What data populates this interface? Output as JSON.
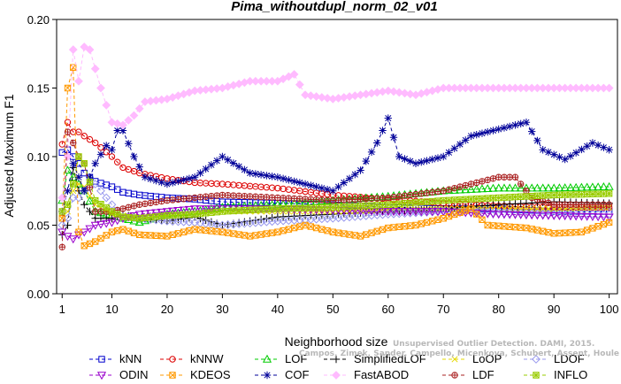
{
  "chart_data": {
    "type": "line",
    "title": "Pima_withoutdupl_norm_02_v01",
    "xlabel": "Neighborhood size",
    "ylabel": "Adjusted Maximum F1",
    "xlim": [
      1,
      100
    ],
    "ylim": [
      0,
      0.2
    ],
    "xticks": [
      1,
      10,
      20,
      30,
      40,
      50,
      60,
      70,
      80,
      90,
      100
    ],
    "yticks": [
      "0.00",
      "0.05",
      "0.10",
      "0.15",
      "0.20"
    ],
    "grid": false,
    "legend_position": "bottom",
    "annotation_lines": [
      "Unsupervised Outlier Detection. DAMI, 2015.",
      "Campos, Zimek, Sander, Campello, Micenkova, Schubert, Assent, Houle"
    ],
    "series": [
      {
        "name": "kNN",
        "color": "#0000cc",
        "marker": "square",
        "dash": "4,3",
        "points": [
          [
            1,
            0.103
          ],
          [
            2,
            0.105
          ],
          [
            3,
            0.1
          ],
          [
            4,
            0.095
          ],
          [
            5,
            0.088
          ],
          [
            7,
            0.082
          ],
          [
            10,
            0.078
          ],
          [
            12,
            0.074
          ],
          [
            15,
            0.072
          ],
          [
            20,
            0.07
          ],
          [
            25,
            0.069
          ],
          [
            30,
            0.067
          ],
          [
            40,
            0.066
          ],
          [
            50,
            0.065
          ],
          [
            60,
            0.063
          ],
          [
            70,
            0.062
          ],
          [
            80,
            0.062
          ],
          [
            90,
            0.06
          ],
          [
            100,
            0.06
          ]
        ]
      },
      {
        "name": "kNNW",
        "color": "#dd0000",
        "marker": "circle",
        "dash": "4,3",
        "points": [
          [
            1,
            0.109
          ],
          [
            2,
            0.125
          ],
          [
            3,
            0.118
          ],
          [
            4,
            0.118
          ],
          [
            5,
            0.115
          ],
          [
            7,
            0.11
          ],
          [
            10,
            0.1
          ],
          [
            12,
            0.092
          ],
          [
            15,
            0.088
          ],
          [
            20,
            0.084
          ],
          [
            25,
            0.081
          ],
          [
            30,
            0.08
          ],
          [
            40,
            0.077
          ],
          [
            50,
            0.072
          ],
          [
            60,
            0.069
          ],
          [
            70,
            0.066
          ],
          [
            80,
            0.064
          ],
          [
            90,
            0.063
          ],
          [
            100,
            0.063
          ]
        ]
      },
      {
        "name": "LOF",
        "color": "#00cc00",
        "marker": "triangle",
        "dash": "4,3",
        "points": [
          [
            1,
            0.068
          ],
          [
            2,
            0.09
          ],
          [
            3,
            0.085
          ],
          [
            4,
            0.08
          ],
          [
            5,
            0.075
          ],
          [
            7,
            0.06
          ],
          [
            10,
            0.057
          ],
          [
            12,
            0.055
          ],
          [
            15,
            0.052
          ],
          [
            20,
            0.058
          ],
          [
            25,
            0.06
          ],
          [
            30,
            0.063
          ],
          [
            40,
            0.065
          ],
          [
            50,
            0.068
          ],
          [
            60,
            0.071
          ],
          [
            70,
            0.075
          ],
          [
            80,
            0.077
          ],
          [
            90,
            0.077
          ],
          [
            100,
            0.078
          ]
        ]
      },
      {
        "name": "SimplifiedLOF",
        "color": "#000000",
        "marker": "plus",
        "dash": "4,3",
        "points": [
          [
            1,
            0.043
          ],
          [
            2,
            0.05
          ],
          [
            3,
            0.092
          ],
          [
            4,
            0.075
          ],
          [
            5,
            0.065
          ],
          [
            7,
            0.055
          ],
          [
            10,
            0.055
          ],
          [
            12,
            0.058
          ],
          [
            15,
            0.055
          ],
          [
            20,
            0.053
          ],
          [
            25,
            0.056
          ],
          [
            30,
            0.05
          ],
          [
            35,
            0.053
          ],
          [
            40,
            0.056
          ],
          [
            50,
            0.058
          ],
          [
            60,
            0.06
          ],
          [
            70,
            0.062
          ],
          [
            80,
            0.065
          ],
          [
            90,
            0.067
          ],
          [
            100,
            0.066
          ]
        ]
      },
      {
        "name": "LoOP",
        "color": "#e6d800",
        "marker": "x",
        "dash": "4,3",
        "points": [
          [
            1,
            0.055
          ],
          [
            2,
            0.06
          ],
          [
            3,
            0.075
          ],
          [
            4,
            0.08
          ],
          [
            5,
            0.078
          ],
          [
            7,
            0.065
          ],
          [
            10,
            0.058
          ],
          [
            12,
            0.057
          ],
          [
            15,
            0.056
          ],
          [
            20,
            0.057
          ],
          [
            25,
            0.058
          ],
          [
            30,
            0.06
          ],
          [
            40,
            0.06
          ],
          [
            50,
            0.06
          ],
          [
            60,
            0.061
          ],
          [
            70,
            0.062
          ],
          [
            80,
            0.062
          ],
          [
            90,
            0.062
          ],
          [
            100,
            0.063
          ]
        ]
      },
      {
        "name": "LDOF",
        "color": "#9999ee",
        "marker": "diamond",
        "dash": "4,3",
        "points": [
          [
            1,
            0.05
          ],
          [
            2,
            0.055
          ],
          [
            3,
            0.07
          ],
          [
            4,
            0.07
          ],
          [
            5,
            0.075
          ],
          [
            7,
            0.08
          ],
          [
            10,
            0.065
          ],
          [
            12,
            0.056
          ],
          [
            15,
            0.055
          ],
          [
            20,
            0.053
          ],
          [
            25,
            0.052
          ],
          [
            30,
            0.05
          ],
          [
            40,
            0.053
          ],
          [
            50,
            0.055
          ],
          [
            60,
            0.058
          ],
          [
            70,
            0.06
          ],
          [
            80,
            0.059
          ],
          [
            90,
            0.058
          ],
          [
            100,
            0.058
          ]
        ]
      },
      {
        "name": "ODIN",
        "color": "#9900cc",
        "marker": "triangle-down",
        "dash": "4,3",
        "points": [
          [
            1,
            0.045
          ],
          [
            2,
            0.042
          ],
          [
            3,
            0.04
          ],
          [
            4,
            0.043
          ],
          [
            5,
            0.045
          ],
          [
            7,
            0.05
          ],
          [
            10,
            0.052
          ],
          [
            12,
            0.055
          ],
          [
            15,
            0.058
          ],
          [
            20,
            0.06
          ],
          [
            25,
            0.062
          ],
          [
            30,
            0.062
          ],
          [
            40,
            0.062
          ],
          [
            50,
            0.061
          ],
          [
            60,
            0.06
          ],
          [
            70,
            0.06
          ],
          [
            80,
            0.058
          ],
          [
            90,
            0.057
          ],
          [
            100,
            0.056
          ]
        ]
      },
      {
        "name": "KDEOS",
        "color": "#ff9900",
        "marker": "square-x",
        "dash": "4,3",
        "points": [
          [
            1,
            0.055
          ],
          [
            2,
            0.15
          ],
          [
            3,
            0.165
          ],
          [
            4,
            0.045
          ],
          [
            5,
            0.035
          ],
          [
            7,
            0.038
          ],
          [
            10,
            0.045
          ],
          [
            12,
            0.047
          ],
          [
            15,
            0.043
          ],
          [
            20,
            0.042
          ],
          [
            25,
            0.047
          ],
          [
            30,
            0.045
          ],
          [
            35,
            0.042
          ],
          [
            40,
            0.045
          ],
          [
            45,
            0.05
          ],
          [
            50,
            0.045
          ],
          [
            55,
            0.042
          ],
          [
            60,
            0.048
          ],
          [
            65,
            0.05
          ],
          [
            70,
            0.055
          ],
          [
            75,
            0.062
          ],
          [
            78,
            0.05
          ],
          [
            85,
            0.048
          ],
          [
            90,
            0.044
          ],
          [
            95,
            0.045
          ],
          [
            100,
            0.052
          ]
        ]
      },
      {
        "name": "COF",
        "color": "#000099",
        "marker": "star",
        "dash": "4,3",
        "points": [
          [
            1,
            0.06
          ],
          [
            2,
            0.075
          ],
          [
            3,
            0.095
          ],
          [
            4,
            0.085
          ],
          [
            5,
            0.075
          ],
          [
            7,
            0.095
          ],
          [
            9,
            0.108
          ],
          [
            10,
            0.105
          ],
          [
            11,
            0.119
          ],
          [
            12,
            0.119
          ],
          [
            14,
            0.1
          ],
          [
            16,
            0.085
          ],
          [
            20,
            0.08
          ],
          [
            25,
            0.085
          ],
          [
            30,
            0.1
          ],
          [
            35,
            0.088
          ],
          [
            40,
            0.085
          ],
          [
            45,
            0.08
          ],
          [
            50,
            0.075
          ],
          [
            55,
            0.09
          ],
          [
            58,
            0.11
          ],
          [
            60,
            0.128
          ],
          [
            62,
            0.1
          ],
          [
            65,
            0.095
          ],
          [
            70,
            0.1
          ],
          [
            75,
            0.115
          ],
          [
            80,
            0.12
          ],
          [
            85,
            0.125
          ],
          [
            88,
            0.105
          ],
          [
            92,
            0.098
          ],
          [
            97,
            0.11
          ],
          [
            100,
            0.105
          ]
        ]
      },
      {
        "name": "FastABOD",
        "color": "#ffbbff",
        "marker": "diamond-filled",
        "dash": "4,3",
        "points": [
          [
            1,
            0.07
          ],
          [
            2,
            0.1
          ],
          [
            3,
            0.178
          ],
          [
            4,
            0.155
          ],
          [
            5,
            0.18
          ],
          [
            6,
            0.178
          ],
          [
            8,
            0.15
          ],
          [
            10,
            0.125
          ],
          [
            12,
            0.123
          ],
          [
            14,
            0.13
          ],
          [
            16,
            0.14
          ],
          [
            20,
            0.142
          ],
          [
            25,
            0.148
          ],
          [
            30,
            0.15
          ],
          [
            35,
            0.155
          ],
          [
            40,
            0.155
          ],
          [
            43,
            0.16
          ],
          [
            45,
            0.145
          ],
          [
            50,
            0.142
          ],
          [
            55,
            0.145
          ],
          [
            60,
            0.148
          ],
          [
            65,
            0.145
          ],
          [
            70,
            0.15
          ],
          [
            80,
            0.15
          ],
          [
            90,
            0.15
          ],
          [
            100,
            0.15
          ]
        ]
      },
      {
        "name": "LDF",
        "color": "#aa2222",
        "marker": "circle-plus",
        "dash": "4,3",
        "points": [
          [
            1,
            0.034
          ],
          [
            2,
            0.118
          ],
          [
            3,
            0.11
          ],
          [
            4,
            0.1
          ],
          [
            5,
            0.095
          ],
          [
            7,
            0.06
          ],
          [
            10,
            0.06
          ],
          [
            12,
            0.062
          ],
          [
            15,
            0.065
          ],
          [
            20,
            0.068
          ],
          [
            25,
            0.07
          ],
          [
            30,
            0.072
          ],
          [
            40,
            0.07
          ],
          [
            50,
            0.068
          ],
          [
            60,
            0.07
          ],
          [
            70,
            0.075
          ],
          [
            75,
            0.08
          ],
          [
            80,
            0.085
          ],
          [
            83,
            0.085
          ],
          [
            86,
            0.07
          ],
          [
            90,
            0.065
          ],
          [
            100,
            0.065
          ]
        ]
      },
      {
        "name": "INFLO",
        "color": "#99cc00",
        "marker": "square-star",
        "dash": "4,3",
        "points": [
          [
            1,
            0.06
          ],
          [
            2,
            0.065
          ],
          [
            3,
            0.08
          ],
          [
            4,
            0.1
          ],
          [
            5,
            0.095
          ],
          [
            7,
            0.068
          ],
          [
            10,
            0.06
          ],
          [
            12,
            0.056
          ],
          [
            15,
            0.055
          ],
          [
            20,
            0.057
          ],
          [
            25,
            0.058
          ],
          [
            30,
            0.06
          ],
          [
            40,
            0.062
          ],
          [
            50,
            0.063
          ],
          [
            60,
            0.065
          ],
          [
            70,
            0.068
          ],
          [
            80,
            0.07
          ],
          [
            90,
            0.072
          ],
          [
            100,
            0.073
          ]
        ]
      }
    ]
  }
}
